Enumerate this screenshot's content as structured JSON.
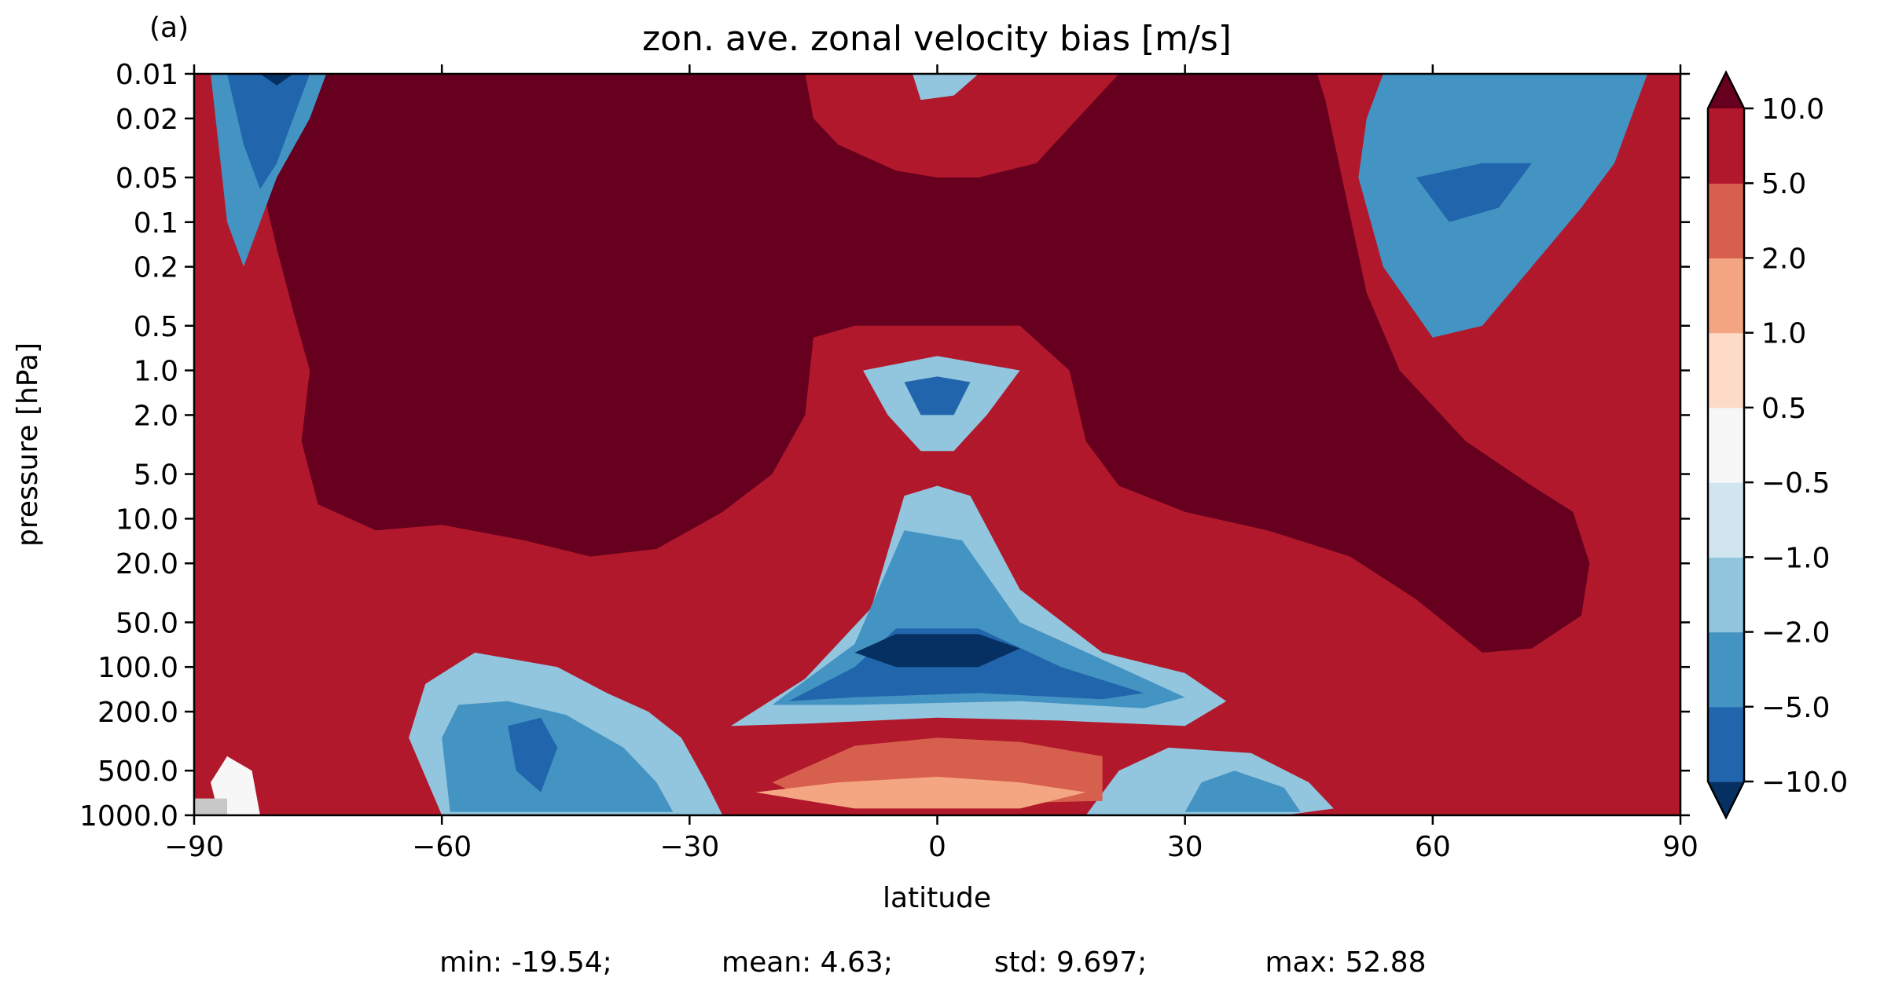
{
  "chart_data": {
    "type": "heatmap",
    "panel_label": "(a)",
    "title": "zon. ave. zonal velocity bias [m/s]",
    "xlabel": "latitude",
    "ylabel": "pressure [hPa]",
    "xlim": [
      -90,
      90
    ],
    "x_ticks": [
      -90,
      -60,
      -30,
      0,
      30,
      60,
      90
    ],
    "x_tick_labels": [
      "−90",
      "−60",
      "−30",
      "0",
      "30",
      "60",
      "90"
    ],
    "y_scale": "log",
    "y_inverted": true,
    "ylim": [
      0.01,
      1000.0
    ],
    "y_ticks": [
      0.01,
      0.02,
      0.05,
      0.1,
      0.2,
      0.5,
      1.0,
      2.0,
      5.0,
      10.0,
      20.0,
      50.0,
      100.0,
      200.0,
      500.0,
      1000.0
    ],
    "y_tick_labels": [
      "0.01",
      "0.02",
      "0.05",
      "0.1",
      "0.2",
      "0.5",
      "1.0",
      "2.0",
      "5.0",
      "10.0",
      "20.0",
      "50.0",
      "100.0",
      "200.0",
      "500.0",
      "1000.0"
    ],
    "colorbar": {
      "levels": [
        -10.0,
        -5.0,
        -2.0,
        -1.0,
        -0.5,
        0.5,
        1.0,
        2.0,
        5.0,
        10.0
      ],
      "tick_labels": [
        "−10.0",
        "−5.0",
        "−2.0",
        "−1.0",
        "−0.5",
        "0.5",
        "1.0",
        "2.0",
        "5.0",
        "10.0"
      ],
      "colors": [
        "#2166ac",
        "#4393c3",
        "#92c5de",
        "#d1e5f0",
        "#f7f7f7",
        "#fddbc7",
        "#f4a582",
        "#d6604d",
        "#b2182b"
      ],
      "under_color": "#053061",
      "over_color": "#67001f",
      "extend": "both"
    },
    "missing_color": "#c8c8c8",
    "regions": [
      {
        "value": 52,
        "ring": [
          [
            -84,
            0.01
          ],
          [
            -82,
            0.05
          ],
          [
            -80,
            0.15
          ],
          [
            -78,
            0.4
          ],
          [
            -76,
            1.0
          ],
          [
            -77,
            3.0
          ],
          [
            -75,
            8.0
          ],
          [
            -68,
            12.0
          ],
          [
            -60,
            11.0
          ],
          [
            -50,
            14.0
          ],
          [
            -42,
            18.0
          ],
          [
            -34,
            16.0
          ],
          [
            -26,
            9.0
          ],
          [
            -20,
            5.0
          ],
          [
            -16,
            2.0
          ],
          [
            -15,
            0.6
          ],
          [
            -10,
            0.5
          ],
          [
            0,
            0.5
          ],
          [
            10,
            0.5
          ],
          [
            16,
            1.0
          ],
          [
            18,
            3.0
          ],
          [
            22,
            6.0
          ],
          [
            30,
            9.0
          ],
          [
            40,
            12.0
          ],
          [
            50,
            18.0
          ],
          [
            58,
            35.0
          ],
          [
            66,
            80.0
          ],
          [
            72,
            75.0
          ],
          [
            78,
            45.0
          ],
          [
            79,
            20.0
          ],
          [
            77,
            9.0
          ],
          [
            72,
            6.0
          ],
          [
            64,
            3.0
          ],
          [
            56,
            1.0
          ],
          [
            52,
            0.3
          ],
          [
            49,
            0.05
          ],
          [
            47,
            0.015
          ],
          [
            46,
            0.01
          ],
          [
            22,
            0.01
          ],
          [
            17,
            0.02
          ],
          [
            12,
            0.04
          ],
          [
            5,
            0.05
          ],
          [
            0,
            0.05
          ],
          [
            -5,
            0.045
          ],
          [
            -12,
            0.03
          ],
          [
            -15,
            0.02
          ],
          [
            -16,
            0.01
          ]
        ]
      },
      {
        "value": -3.5,
        "ring": [
          [
            -88,
            0.01
          ],
          [
            -86,
            0.1
          ],
          [
            -84,
            0.2
          ],
          [
            -82,
            0.1
          ],
          [
            -80,
            0.05
          ],
          [
            -76,
            0.02
          ],
          [
            -74,
            0.01
          ]
        ]
      },
      {
        "value": -7.5,
        "ring": [
          [
            -86,
            0.01
          ],
          [
            -84,
            0.03
          ],
          [
            -82,
            0.06
          ],
          [
            -80,
            0.04
          ],
          [
            -78,
            0.02
          ],
          [
            -76,
            0.01
          ]
        ]
      },
      {
        "value": -12,
        "ring": [
          [
            -82,
            0.01
          ],
          [
            -80,
            0.012
          ],
          [
            -78,
            0.01
          ]
        ]
      },
      {
        "value": -1.5,
        "ring": [
          [
            -3,
            0.01
          ],
          [
            -2,
            0.015
          ],
          [
            2,
            0.014
          ],
          [
            5,
            0.01
          ]
        ]
      },
      {
        "value": -2.5,
        "ring": [
          [
            51,
            0.05
          ],
          [
            54,
            0.2
          ],
          [
            60,
            0.6
          ],
          [
            66,
            0.5
          ],
          [
            72,
            0.2
          ],
          [
            78,
            0.08
          ],
          [
            82,
            0.04
          ],
          [
            84,
            0.02
          ],
          [
            86,
            0.01
          ],
          [
            54,
            0.01
          ],
          [
            52,
            0.02
          ]
        ]
      },
      {
        "value": -7.5,
        "ring": [
          [
            58,
            0.05
          ],
          [
            62,
            0.1
          ],
          [
            68,
            0.08
          ],
          [
            72,
            0.04
          ],
          [
            66,
            0.04
          ]
        ]
      },
      {
        "value": -1.5,
        "ring": [
          [
            -9,
            1.0
          ],
          [
            -6,
            2.0
          ],
          [
            -2,
            3.5
          ],
          [
            2,
            3.5
          ],
          [
            6,
            2.0
          ],
          [
            10,
            1.0
          ],
          [
            0,
            0.8
          ]
        ]
      },
      {
        "value": -7,
        "ring": [
          [
            -4,
            1.2
          ],
          [
            -2,
            2.0
          ],
          [
            2,
            2.0
          ],
          [
            4,
            1.2
          ],
          [
            0,
            1.1
          ]
        ]
      },
      {
        "value": -1.5,
        "ring": [
          [
            -25,
            250.0
          ],
          [
            -16,
            120.0
          ],
          [
            -8,
            40.0
          ],
          [
            -4,
            7.0
          ],
          [
            0,
            6.0
          ],
          [
            4,
            7.0
          ],
          [
            10,
            30.0
          ],
          [
            20,
            80.0
          ],
          [
            30,
            110.0
          ],
          [
            35,
            170.0
          ],
          [
            30,
            250.0
          ],
          [
            15,
            230.0
          ],
          [
            0,
            220.0
          ],
          [
            -15,
            240.0
          ]
        ]
      },
      {
        "value": -3.5,
        "ring": [
          [
            -20,
            180.0
          ],
          [
            -10,
            70.0
          ],
          [
            -4,
            12.0
          ],
          [
            3,
            14.0
          ],
          [
            10,
            50.0
          ],
          [
            22,
            100.0
          ],
          [
            30,
            160.0
          ],
          [
            25,
            190.0
          ],
          [
            10,
            170.0
          ],
          [
            -10,
            180.0
          ]
        ]
      },
      {
        "value": -7.5,
        "ring": [
          [
            -18,
            170.0
          ],
          [
            -10,
            100.0
          ],
          [
            -5,
            55.0
          ],
          [
            5,
            55.0
          ],
          [
            15,
            100.0
          ],
          [
            25,
            150.0
          ],
          [
            20,
            165.0
          ],
          [
            5,
            150.0
          ],
          [
            -10,
            160.0
          ]
        ]
      },
      {
        "value": -12,
        "ring": [
          [
            -10,
            80.0
          ],
          [
            -5,
            60.0
          ],
          [
            5,
            60.0
          ],
          [
            10,
            75.0
          ],
          [
            5,
            100.0
          ],
          [
            -5,
            100.0
          ]
        ]
      },
      {
        "value": -1.5,
        "ring": [
          [
            -60,
            1000.0
          ],
          [
            -64,
            300.0
          ],
          [
            -62,
            130.0
          ],
          [
            -56,
            80.0
          ],
          [
            -46,
            100.0
          ],
          [
            -40,
            150.0
          ],
          [
            -35,
            200.0
          ],
          [
            -31,
            300.0
          ],
          [
            -28,
            600.0
          ],
          [
            -26,
            1000.0
          ]
        ]
      },
      {
        "value": -3.5,
        "ring": [
          [
            -59,
            950.0
          ],
          [
            -60,
            300.0
          ],
          [
            -58,
            180.0
          ],
          [
            -52,
            170.0
          ],
          [
            -45,
            210.0
          ],
          [
            -38,
            350.0
          ],
          [
            -34,
            600.0
          ],
          [
            -32,
            950.0
          ]
        ]
      },
      {
        "value": -7.5,
        "ring": [
          [
            -52,
            250.0
          ],
          [
            -48,
            220.0
          ],
          [
            -46,
            350.0
          ],
          [
            -48,
            700.0
          ],
          [
            -51,
            500.0
          ]
        ]
      },
      {
        "value": -1.5,
        "ring": [
          [
            18,
            1000.0
          ],
          [
            22,
            500.0
          ],
          [
            28,
            350.0
          ],
          [
            38,
            380.0
          ],
          [
            45,
            600.0
          ],
          [
            48,
            900.0
          ],
          [
            42,
            1000.0
          ]
        ]
      },
      {
        "value": -3.5,
        "ring": [
          [
            30,
            950.0
          ],
          [
            32,
            600.0
          ],
          [
            36,
            500.0
          ],
          [
            42,
            650.0
          ],
          [
            44,
            950.0
          ]
        ]
      },
      {
        "value": 3.5,
        "ring": [
          [
            -20,
            600.0
          ],
          [
            -10,
            340.0
          ],
          [
            0,
            300.0
          ],
          [
            10,
            320.0
          ],
          [
            20,
            400.0
          ],
          [
            20,
            800.0
          ],
          [
            0,
            850.0
          ],
          [
            -15,
            800.0
          ]
        ]
      },
      {
        "value": 1.5,
        "ring": [
          [
            -22,
            700.0
          ],
          [
            -12,
            600.0
          ],
          [
            0,
            550.0
          ],
          [
            10,
            600.0
          ],
          [
            18,
            700.0
          ],
          [
            10,
            900.0
          ],
          [
            -10,
            900.0
          ]
        ]
      },
      {
        "value": 0,
        "ring": [
          [
            -88,
            600.0
          ],
          [
            -86,
            400.0
          ],
          [
            -83,
            500.0
          ],
          [
            -82,
            1000.0
          ],
          [
            -87,
            1000.0
          ]
        ]
      },
      {
        "value": -0.2,
        "ring": [
          [
            -90,
            1000.0
          ],
          [
            -90,
            770.0
          ],
          [
            -86,
            770.0
          ],
          [
            -86,
            1000.0
          ]
        ]
      }
    ]
  },
  "stats": {
    "min": "min: -19.54;",
    "mean": "mean: 4.63;",
    "std": "std: 9.697;",
    "max": "max: 52.88"
  }
}
